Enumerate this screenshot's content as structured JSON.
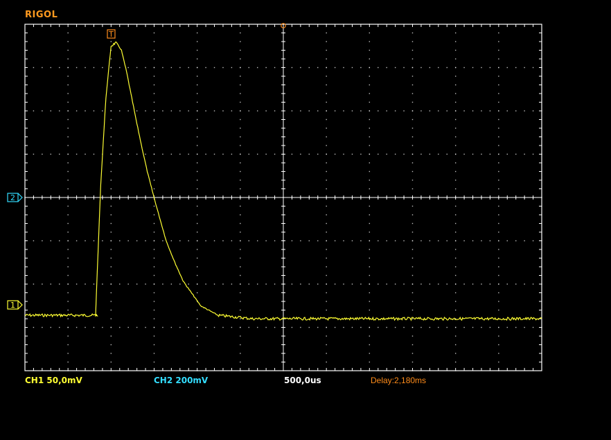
{
  "header": {
    "brand": "RIGOL"
  },
  "colors": {
    "brand": "#ff9a1f",
    "ch1": "#ffff33",
    "ch2": "#33ddff",
    "timebase": "#ffffff",
    "delay": "#ff8c1a",
    "grid": "#ffffff",
    "trigger": "#ff8c1a"
  },
  "markers": {
    "trigger": "T",
    "ch2": "2",
    "ch1": "1"
  },
  "status": {
    "ch1_scale": "CH1 50,0mV",
    "ch2_scale": "CH2 200mV",
    "timebase": "500,0us",
    "delay": "Delay:2,180ms"
  },
  "chart_data": {
    "type": "line",
    "grid": {
      "horizontal_divisions": 12,
      "vertical_divisions": 8,
      "on": true
    },
    "x_unit": "ms",
    "y_unit": "mV",
    "xlim": [
      -0.82,
      2.18
    ],
    "ylim": [
      -215,
      185
    ],
    "series": [
      {
        "x": [
          -0.82,
          -0.4,
          -0.41,
          -0.38,
          -0.35,
          -0.32,
          -0.29,
          -0.26,
          -0.23,
          -0.2,
          -0.17,
          -0.14,
          -0.11,
          -0.08,
          -0.05,
          0.0,
          0.05,
          0.1,
          0.2,
          0.3,
          0.5,
          0.8,
          1.2,
          1.6,
          2.18
        ],
        "y": [
          -151,
          -151,
          -151,
          0,
          100,
          160,
          164,
          155,
          130,
          100,
          70,
          42,
          15,
          -8,
          -30,
          -65,
          -90,
          -112,
          -140,
          -151,
          -155,
          -155,
          -155,
          -155,
          -155
        ]
      }
    ]
  }
}
